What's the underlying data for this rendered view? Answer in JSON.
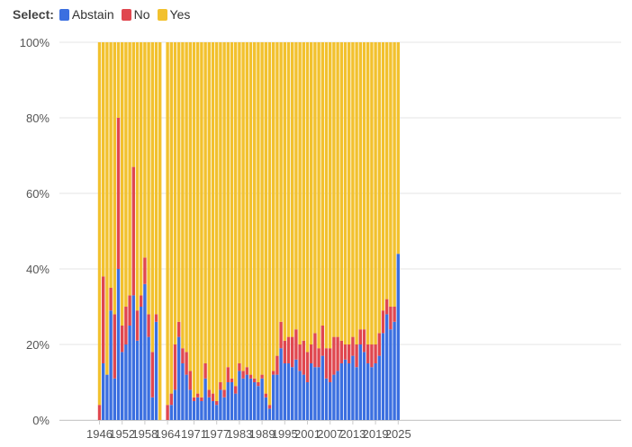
{
  "legend": {
    "title": "Select:",
    "items": [
      {
        "label": "Abstain",
        "color": "#3b6fe0"
      },
      {
        "label": "No",
        "color": "#e0474f"
      },
      {
        "label": "Yes",
        "color": "#f2c12e"
      }
    ]
  },
  "chart_data": {
    "type": "bar",
    "stacked": true,
    "normalized_percent": true,
    "ylim": [
      0,
      100
    ],
    "y_ticks": [
      "0%",
      "20%",
      "40%",
      "60%",
      "80%",
      "100%"
    ],
    "x_tick_labels": [
      "1946",
      "1952",
      "1958",
      "1964",
      "1971",
      "1977",
      "1983",
      "1989",
      "1995",
      "2001",
      "2007",
      "2013",
      "2019",
      "2025"
    ],
    "grid": true,
    "legend_position": "top-left",
    "categories": [
      "1946",
      "1947",
      "1948",
      "1949",
      "1950",
      "1951",
      "1952",
      "1953",
      "1954",
      "1955",
      "1956",
      "1957",
      "1958",
      "1959",
      "1960",
      "1961",
      "1962",
      "1963",
      "1964",
      "1965",
      "1966",
      "1967",
      "1968",
      "1969",
      "1970",
      "1971",
      "1972",
      "1973",
      "1974",
      "1975",
      "1976",
      "1977",
      "1978",
      "1979",
      "1980",
      "1981",
      "1982",
      "1983",
      "1984",
      "1985",
      "1986",
      "1987",
      "1988",
      "1989",
      "1990",
      "1991",
      "1992",
      "1993",
      "1994",
      "1995",
      "1996",
      "1997",
      "1998",
      "1999",
      "2000",
      "2001",
      "2002",
      "2003",
      "2004",
      "2005",
      "2006",
      "2007",
      "2008",
      "2009",
      "2010",
      "2011",
      "2012",
      "2013",
      "2014",
      "2015",
      "2016",
      "2017",
      "2018",
      "2019",
      "2020",
      "2021",
      "2022",
      "2023",
      "2024",
      "2025"
    ],
    "series": [
      {
        "name": "Abstain",
        "color": "#3b6fe0",
        "values": [
          0,
          15,
          12,
          29,
          11,
          40,
          18,
          20,
          25,
          33,
          21,
          30,
          36,
          22,
          6,
          26,
          0,
          0,
          0,
          4,
          8,
          22,
          15,
          12,
          8,
          5,
          6,
          5,
          11,
          6,
          5,
          4,
          8,
          6,
          10,
          10,
          7,
          13,
          11,
          12,
          11,
          10,
          9,
          11,
          6,
          3,
          12,
          12,
          19,
          15,
          15,
          14,
          16,
          13,
          12,
          10,
          15,
          14,
          14,
          17,
          11,
          10,
          12,
          13,
          15,
          16,
          15,
          17,
          14,
          20,
          18,
          15,
          14,
          15,
          17,
          23,
          28,
          24,
          26,
          44
        ]
      },
      {
        "name": "No",
        "color": "#e0474f",
        "values": [
          4,
          23,
          0,
          6,
          17,
          40,
          7,
          10,
          8,
          34,
          8,
          3,
          7,
          6,
          12,
          2,
          0,
          0,
          4,
          3,
          12,
          4,
          4,
          6,
          5,
          1,
          1,
          1,
          4,
          2,
          2,
          1,
          2,
          2,
          4,
          1,
          2,
          2,
          2,
          2,
          1,
          1,
          1,
          1,
          1,
          1,
          1,
          5,
          7,
          6,
          7,
          8,
          8,
          7,
          9,
          8,
          5,
          9,
          5,
          8,
          8,
          9,
          10,
          9,
          6,
          4,
          5,
          5,
          6,
          4,
          6,
          5,
          6,
          5,
          6,
          6,
          4,
          6,
          4,
          0
        ]
      },
      {
        "name": "Yes",
        "color": "#f2c12e",
        "values": [
          96,
          62,
          88,
          65,
          72,
          20,
          75,
          70,
          67,
          33,
          71,
          67,
          57,
          72,
          82,
          72,
          100,
          0,
          96,
          93,
          80,
          74,
          81,
          82,
          87,
          94,
          93,
          94,
          85,
          92,
          93,
          95,
          90,
          92,
          86,
          89,
          91,
          85,
          87,
          86,
          88,
          89,
          90,
          88,
          93,
          96,
          87,
          83,
          74,
          79,
          78,
          78,
          76,
          80,
          79,
          82,
          80,
          77,
          81,
          75,
          81,
          81,
          78,
          78,
          79,
          80,
          80,
          78,
          80,
          76,
          76,
          80,
          80,
          80,
          77,
          71,
          68,
          70,
          70,
          56
        ]
      }
    ]
  }
}
